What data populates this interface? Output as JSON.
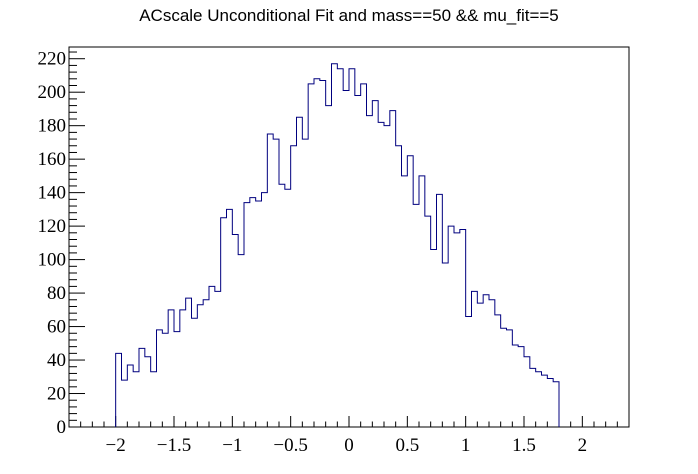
{
  "chart_data": {
    "type": "bar",
    "title": "ACscale Unconditional Fit and mass==50 && mu_fit==5",
    "xlabel": "",
    "ylabel": "",
    "xlim": [
      -2.4,
      2.4
    ],
    "ylim": [
      0,
      227
    ],
    "bin_width": 0.05,
    "x_start": -2.0,
    "x_ticks": [
      -2,
      -1.5,
      -1,
      -0.5,
      0,
      0.5,
      1,
      1.5,
      2
    ],
    "x_tick_labels": [
      "−2",
      "−1.5",
      "−1",
      "−0.5",
      "0",
      "0.5",
      "1",
      "1.5",
      "2"
    ],
    "y_ticks": [
      0,
      20,
      40,
      60,
      80,
      100,
      120,
      140,
      160,
      180,
      200,
      220
    ],
    "y_tick_labels": [
      "0",
      "20",
      "40",
      "60",
      "80",
      "100",
      "120",
      "140",
      "160",
      "180",
      "200",
      "220"
    ],
    "values": [
      44,
      28,
      37,
      33,
      47,
      42,
      33,
      58,
      56,
      70,
      57,
      70,
      77,
      65,
      73,
      76,
      84,
      81,
      125,
      130,
      115,
      103,
      134,
      137,
      135,
      140,
      175,
      172,
      145,
      142,
      168,
      185,
      172,
      205,
      208,
      207,
      192,
      217,
      214,
      201,
      214,
      198,
      205,
      186,
      195,
      182,
      180,
      189,
      168,
      150,
      162,
      133,
      150,
      126,
      106,
      139,
      98,
      120,
      116,
      118,
      66,
      81,
      74,
      79,
      76,
      67,
      59,
      58,
      49,
      48,
      42,
      35,
      33,
      31,
      29,
      27
    ],
    "grid": false,
    "line_color": "#00007f"
  }
}
